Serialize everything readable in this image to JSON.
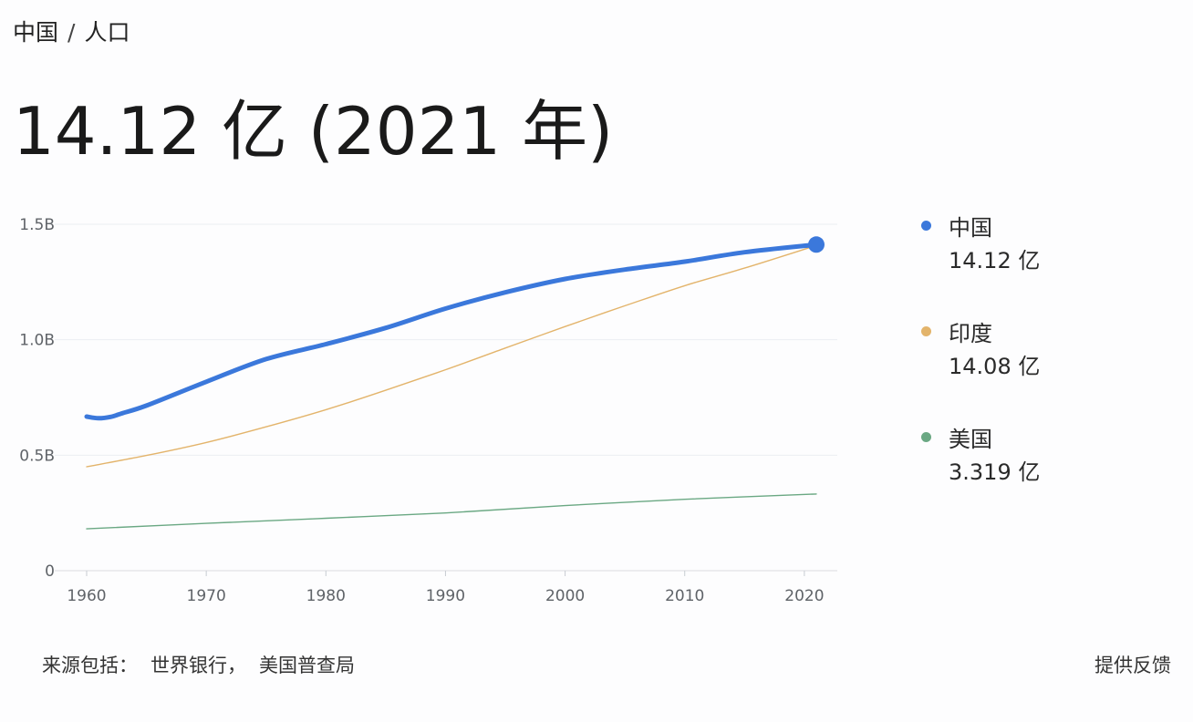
{
  "breadcrumb": {
    "country": "中国",
    "separator": "/",
    "topic": "人口"
  },
  "headline": "14.12 亿 (2021 年)",
  "legend": [
    {
      "name": "中国",
      "value": "14.12 亿",
      "color": "#3b78db"
    },
    {
      "name": "印度",
      "value": "14.08 亿",
      "color": "#e3b46b"
    },
    {
      "name": "美国",
      "value": "3.319 亿",
      "color": "#6aa883"
    }
  ],
  "source": {
    "label": "来源包括：",
    "items": [
      "世界银行，",
      "美国普查局"
    ]
  },
  "feedback_label": "提供反馈",
  "chart_data": {
    "type": "line",
    "title": "",
    "xlabel": "",
    "ylabel": "",
    "xlim": [
      1960,
      2021
    ],
    "ylim": [
      0,
      1.5
    ],
    "x_ticks": [
      1960,
      1970,
      1980,
      1990,
      2000,
      2010,
      2020
    ],
    "x_tick_labels": [
      "1960",
      "1970",
      "1980",
      "1990",
      "2000",
      "2010",
      "2020"
    ],
    "y_ticks": [
      0,
      0.5,
      1.0,
      1.5
    ],
    "y_tick_labels": [
      "0",
      "0.5B",
      "1.0B",
      "1.5B"
    ],
    "grid": true,
    "legend_position": "right",
    "series": [
      {
        "name": "中国",
        "color": "#3b78db",
        "x": [
          1960,
          1961,
          1962,
          1963,
          1965,
          1970,
          1975,
          1980,
          1985,
          1990,
          1995,
          2000,
          2005,
          2010,
          2015,
          2021
        ],
        "y": [
          0.667,
          0.66,
          0.666,
          0.682,
          0.715,
          0.818,
          0.916,
          0.981,
          1.051,
          1.135,
          1.205,
          1.263,
          1.304,
          1.338,
          1.379,
          1.412
        ]
      },
      {
        "name": "印度",
        "color": "#e3b46b",
        "x": [
          1960,
          1965,
          1970,
          1975,
          1980,
          1985,
          1990,
          1995,
          2000,
          2005,
          2010,
          2015,
          2021
        ],
        "y": [
          0.45,
          0.499,
          0.555,
          0.623,
          0.697,
          0.781,
          0.87,
          0.964,
          1.057,
          1.147,
          1.234,
          1.31,
          1.408
        ]
      },
      {
        "name": "美国",
        "color": "#6aa883",
        "x": [
          1960,
          1970,
          1980,
          1990,
          2000,
          2010,
          2021
        ],
        "y": [
          0.181,
          0.205,
          0.227,
          0.25,
          0.282,
          0.309,
          0.332
        ]
      }
    ]
  }
}
